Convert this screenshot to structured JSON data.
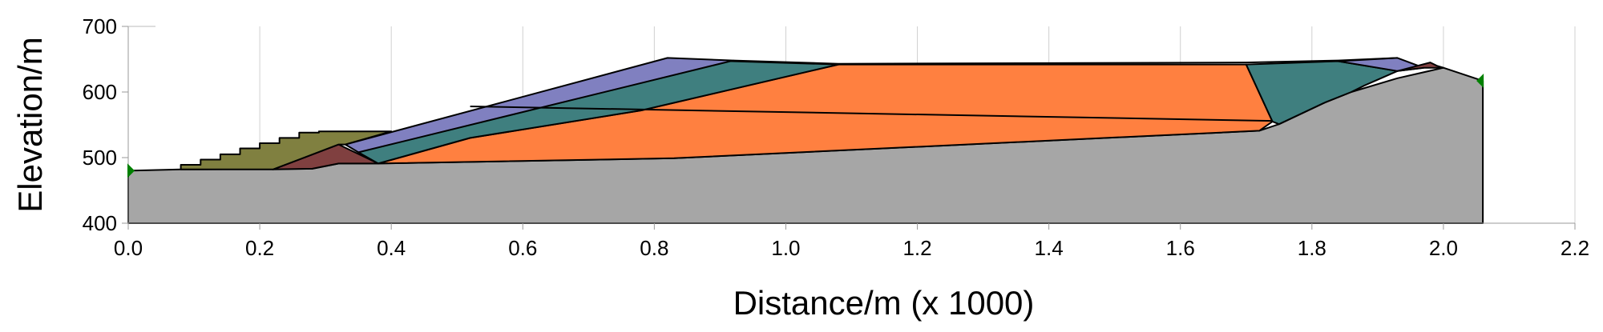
{
  "chart_data": {
    "type": "area",
    "xlabel": "Distance/m (x  1000)",
    "ylabel": "Elevation/m",
    "xlim": [
      0.0,
      2.2
    ],
    "ylim": [
      400,
      700
    ],
    "xticks": [
      "0.0",
      "0.2",
      "0.4",
      "0.6",
      "0.8",
      "1.0",
      "1.2",
      "1.4",
      "1.6",
      "1.8",
      "2.0",
      "2.2"
    ],
    "yticks": [
      "400",
      "500",
      "600",
      "700"
    ],
    "grid": "vertical-light",
    "colors": {
      "ground": "#a6a6a6",
      "orange_layer": "#ff8040",
      "teal_layer": "#3f7f7f",
      "lavender_layer": "#8080c0",
      "olive_fill": "#808040",
      "maroon_toe": "#804040",
      "boundary_marker": "#008000"
    },
    "layers": [
      {
        "id": "ground",
        "color": "#a6a6a6",
        "points": [
          [
            0.0,
            400
          ],
          [
            0.0,
            480
          ],
          [
            0.08,
            482
          ],
          [
            0.28,
            483
          ],
          [
            0.32,
            491
          ],
          [
            0.38,
            491
          ],
          [
            0.83,
            499
          ],
          [
            1.72,
            541
          ],
          [
            1.75,
            551
          ],
          [
            1.82,
            584
          ],
          [
            1.86,
            600
          ],
          [
            1.93,
            621
          ],
          [
            2.0,
            637
          ],
          [
            2.06,
            617
          ],
          [
            2.06,
            400
          ]
        ]
      },
      {
        "id": "orange",
        "color": "#ff8040",
        "points": [
          [
            0.38,
            491
          ],
          [
            0.52,
            530
          ],
          [
            0.78,
            572
          ],
          [
            1.08,
            642
          ],
          [
            1.7,
            642
          ],
          [
            1.74,
            555
          ],
          [
            1.72,
            541
          ],
          [
            0.83,
            499
          ]
        ]
      },
      {
        "id": "teal-left",
        "color": "#3f7f7f",
        "points": [
          [
            0.35,
            508
          ],
          [
            0.82,
            650
          ],
          [
            1.08,
            642
          ],
          [
            0.78,
            572
          ],
          [
            0.52,
            530
          ],
          [
            0.38,
            491
          ]
        ]
      },
      {
        "id": "lavender-left",
        "color": "#8080c0",
        "points": [
          [
            0.33,
            520
          ],
          [
            0.82,
            652
          ],
          [
            0.92,
            648
          ],
          [
            0.35,
            508
          ]
        ]
      },
      {
        "id": "teal-right",
        "color": "#3f7f7f",
        "points": [
          [
            1.7,
            642
          ],
          [
            1.84,
            647
          ],
          [
            1.93,
            632
          ],
          [
            1.88,
            610
          ],
          [
            1.86,
            600
          ],
          [
            1.82,
            584
          ],
          [
            1.75,
            551
          ],
          [
            1.74,
            555
          ]
        ]
      },
      {
        "id": "lavender-right",
        "color": "#8080c0",
        "points": [
          [
            1.84,
            647
          ],
          [
            1.93,
            652
          ],
          [
            1.97,
            637
          ],
          [
            1.93,
            632
          ]
        ]
      },
      {
        "id": "maroon-right",
        "color": "#804040",
        "points": [
          [
            1.93,
            632
          ],
          [
            1.97,
            637
          ],
          [
            2.0,
            637
          ],
          [
            1.99,
            640
          ],
          [
            1.98,
            645
          ]
        ]
      },
      {
        "id": "maroon-toe",
        "color": "#804040",
        "points": [
          [
            0.22,
            482
          ],
          [
            0.32,
            520
          ],
          [
            0.38,
            491
          ],
          [
            0.32,
            491
          ],
          [
            0.28,
            483
          ]
        ]
      },
      {
        "id": "olive",
        "color": "#808040",
        "points": [
          [
            0.08,
            482
          ],
          [
            0.08,
            489
          ],
          [
            0.11,
            489
          ],
          [
            0.11,
            497
          ],
          [
            0.14,
            497
          ],
          [
            0.14,
            505
          ],
          [
            0.17,
            505
          ],
          [
            0.17,
            514
          ],
          [
            0.2,
            514
          ],
          [
            0.2,
            522
          ],
          [
            0.23,
            522
          ],
          [
            0.23,
            530
          ],
          [
            0.26,
            530
          ],
          [
            0.26,
            538
          ],
          [
            0.29,
            538
          ],
          [
            0.29,
            540
          ],
          [
            0.4,
            540
          ],
          [
            0.33,
            520
          ],
          [
            0.32,
            520
          ],
          [
            0.22,
            482
          ]
        ]
      }
    ],
    "lines": [
      {
        "id": "crest-line",
        "points": [
          [
            0.92,
            648
          ],
          [
            1.08,
            643
          ],
          [
            1.7,
            645
          ],
          [
            1.84,
            648
          ],
          [
            1.93,
            652
          ]
        ]
      },
      {
        "id": "internal-line",
        "points": [
          [
            0.52,
            578
          ],
          [
            1.74,
            556
          ]
        ]
      }
    ],
    "boundary_markers": [
      {
        "id": "marker-left",
        "x": 0.0,
        "y": 480,
        "direction": "right"
      },
      {
        "id": "marker-right",
        "x": 2.06,
        "y": 617,
        "direction": "left"
      }
    ]
  }
}
